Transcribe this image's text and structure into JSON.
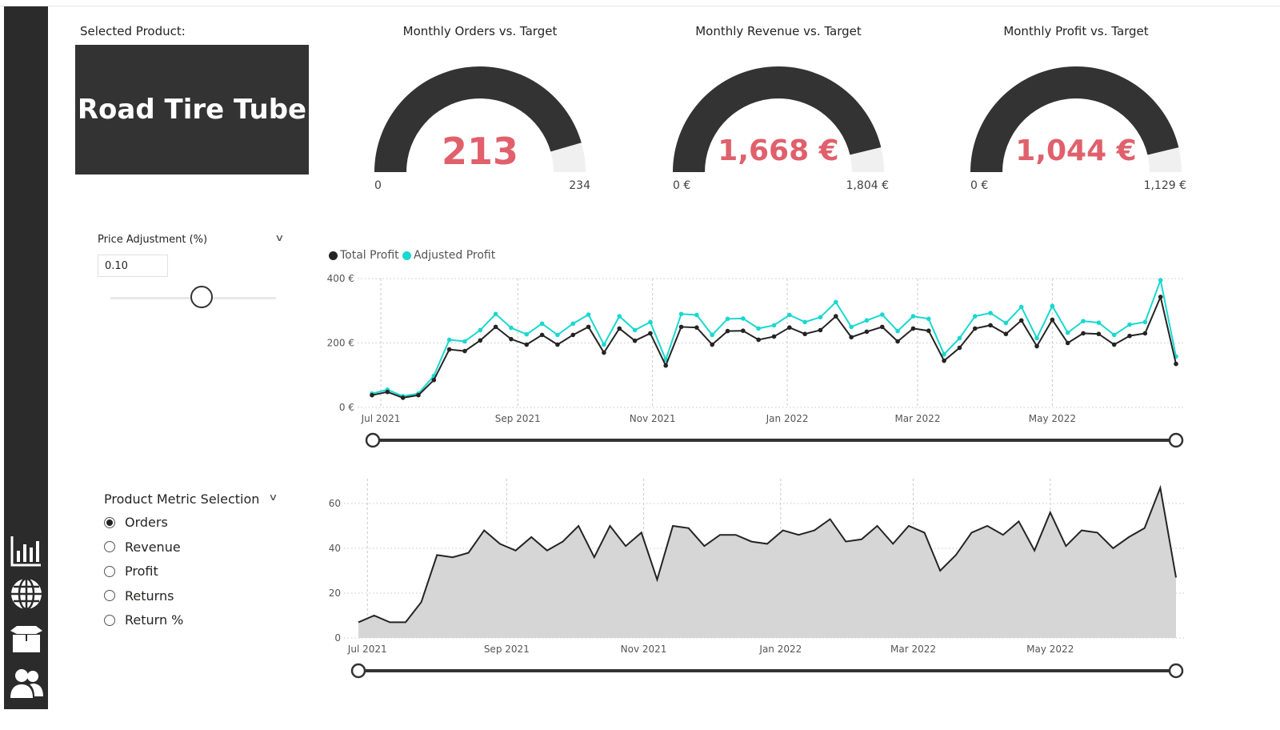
{
  "selected_product": {
    "label": "Selected Product:",
    "value": "Road Tire Tube"
  },
  "gauges": [
    {
      "title": "Monthly Orders vs. Target",
      "value_label": "213",
      "value": 213,
      "min_label": "0",
      "max_label": "234",
      "max": 234
    },
    {
      "title": "Monthly Revenue vs. Target",
      "value_label": "1,668 €",
      "value": 1668,
      "min_label": "0 €",
      "max_label": "1,804 €",
      "max": 1804
    },
    {
      "title": "Monthly Profit vs. Target",
      "value_label": "1,044 €",
      "value": 1044,
      "min_label": "0 €",
      "max_label": "1,129 €",
      "max": 1129
    }
  ],
  "price_adjustment": {
    "title": "Price Adjustment (%)",
    "value": "0.10"
  },
  "metric_selection": {
    "title": "Product Metric Selection",
    "options": [
      "Orders",
      "Revenue",
      "Profit",
      "Returns",
      "Return %"
    ],
    "selected": "Orders"
  },
  "sidebar": {
    "icons": [
      "bar-chart-icon",
      "globe-icon",
      "box-icon",
      "users-icon"
    ]
  },
  "colors": {
    "dark": "#333333",
    "accent": "#e0606c",
    "adjusted": "#1ad8d0",
    "area": "#d6d6d6"
  },
  "chart_data": [
    {
      "type": "line",
      "legend": [
        "Total Profit",
        "Adjusted Profit"
      ],
      "legend_placement": "top-left",
      "yticks": [
        "0 €",
        "200 €",
        "400 €"
      ],
      "ylim": [
        0,
        400
      ],
      "grid": true,
      "xticks": [
        {
          "label": "Jul 2021",
          "date": "2021-07-01"
        },
        {
          "label": "Sep 2021",
          "date": "2021-09-01"
        },
        {
          "label": "Nov 2021",
          "date": "2021-11-01"
        },
        {
          "label": "Jan 2022",
          "date": "2022-01-01"
        },
        {
          "label": "Mar 2022",
          "date": "2022-03-01"
        },
        {
          "label": "May 2022",
          "date": "2022-05-01"
        }
      ],
      "series": [
        {
          "name": "Total Profit",
          "values": [
            38,
            48,
            30,
            38,
            85,
            180,
            175,
            208,
            250,
            212,
            195,
            225,
            195,
            225,
            250,
            170,
            245,
            207,
            230,
            130,
            250,
            248,
            195,
            237,
            238,
            210,
            220,
            248,
            228,
            240,
            283,
            218,
            235,
            250,
            205,
            245,
            238,
            145,
            185,
            245,
            255,
            228,
            270,
            190,
            272,
            200,
            230,
            228,
            195,
            222,
            230,
            343,
            135
          ]
        },
        {
          "name": "Adjusted Profit",
          "values": [
            43,
            55,
            35,
            43,
            98,
            210,
            205,
            240,
            290,
            247,
            227,
            260,
            225,
            260,
            288,
            195,
            283,
            240,
            265,
            148,
            290,
            287,
            225,
            275,
            276,
            245,
            255,
            287,
            265,
            280,
            327,
            250,
            270,
            288,
            237,
            283,
            275,
            165,
            215,
            283,
            293,
            262,
            312,
            215,
            315,
            232,
            268,
            263,
            225,
            257,
            265,
            395,
            158
          ]
        }
      ]
    },
    {
      "type": "area",
      "yticks": [
        "0",
        "20",
        "40",
        "60"
      ],
      "ylim": [
        0,
        67
      ],
      "grid": true,
      "xticks": [
        {
          "label": "Jul 2021",
          "date": "2021-07-01"
        },
        {
          "label": "Sep 2021",
          "date": "2021-09-01"
        },
        {
          "label": "Nov 2021",
          "date": "2021-11-01"
        },
        {
          "label": "Jan 2022",
          "date": "2022-01-01"
        },
        {
          "label": "Mar 2022",
          "date": "2022-03-01"
        },
        {
          "label": "May 2022",
          "date": "2022-05-01"
        }
      ],
      "series": [
        {
          "values": [
            7,
            10,
            7,
            7,
            16,
            37,
            36,
            38,
            48,
            42,
            39,
            45,
            39,
            43,
            50,
            36,
            50,
            41,
            47,
            26,
            50,
            49,
            41,
            46,
            46,
            43,
            42,
            48,
            46,
            48,
            53,
            43,
            44,
            50,
            42,
            50,
            47,
            30,
            37,
            47,
            50,
            46,
            52,
            39,
            56,
            41,
            48,
            47,
            40,
            45,
            49,
            67,
            27
          ]
        }
      ]
    }
  ],
  "x_first_date": "2021-06-27",
  "x_last_date": "2022-06-26"
}
